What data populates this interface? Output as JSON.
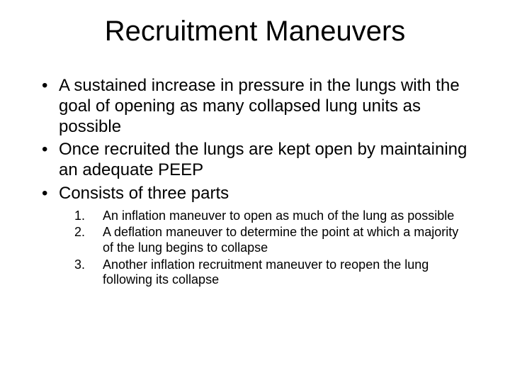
{
  "slide": {
    "title": "Recruitment Maneuvers",
    "bullets": [
      "A sustained increase in pressure in the lungs with the goal of opening as many collapsed lung units as possible",
      "Once recruited the lungs are kept open by maintaining an adequate PEEP",
      "Consists of three parts"
    ],
    "sub_items": [
      "An inflation maneuver to open as much of the lung as possible",
      "A deflation maneuver to determine the point at which a majority of the lung begins to collapse",
      "Another inflation recruitment maneuver to reopen the lung following its collapse"
    ],
    "style": {
      "background_color": "#ffffff",
      "text_color": "#000000",
      "title_fontsize": 40,
      "bullet_fontsize": 24,
      "sub_fontsize": 18,
      "font_family": "Arial"
    }
  }
}
